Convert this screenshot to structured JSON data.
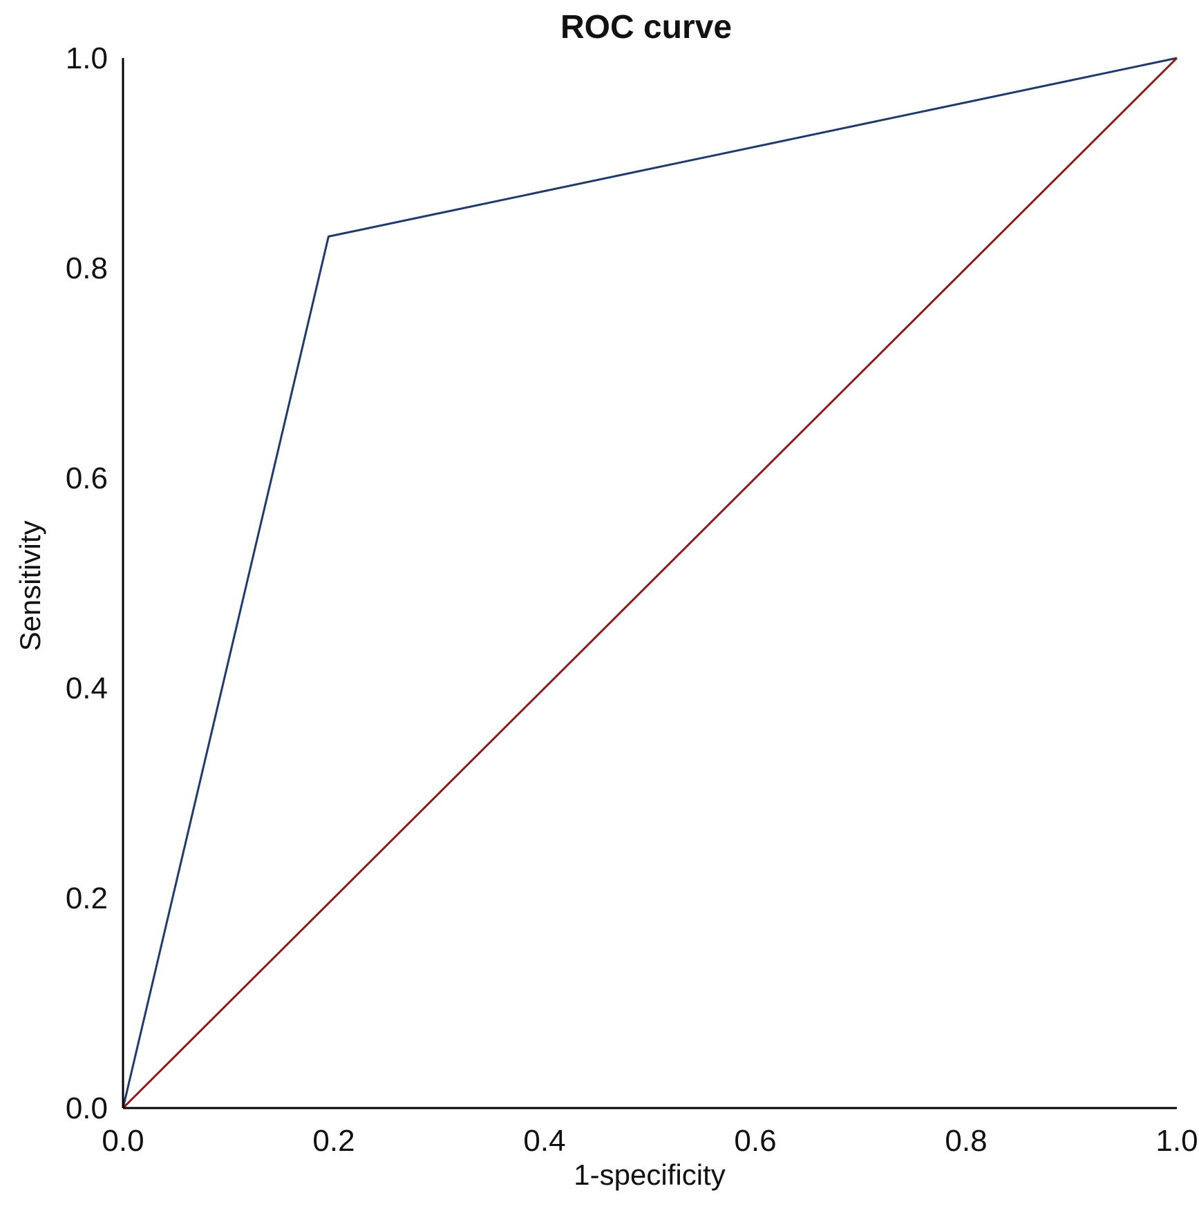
{
  "chart_data": {
    "type": "line",
    "title": "ROC curve",
    "xlabel": "1-specificity",
    "ylabel": "Sensitivity",
    "xlim": [
      0,
      1
    ],
    "ylim": [
      0,
      1
    ],
    "x_ticks": [
      "0.0",
      "0.2",
      "0.4",
      "0.6",
      "0.8",
      "1.0"
    ],
    "y_ticks": [
      "0.0",
      "0.2",
      "0.4",
      "0.6",
      "0.8",
      "1.0"
    ],
    "grid": false,
    "legend": "none",
    "series": [
      {
        "color": "#1f3a6b",
        "x": [
          0.0,
          0.195,
          1.0
        ],
        "y": [
          0.0,
          0.83,
          1.0
        ]
      },
      {
        "color": "#8b1a1a",
        "x": [
          0.0,
          1.0
        ],
        "y": [
          0.0,
          1.0
        ]
      }
    ]
  }
}
